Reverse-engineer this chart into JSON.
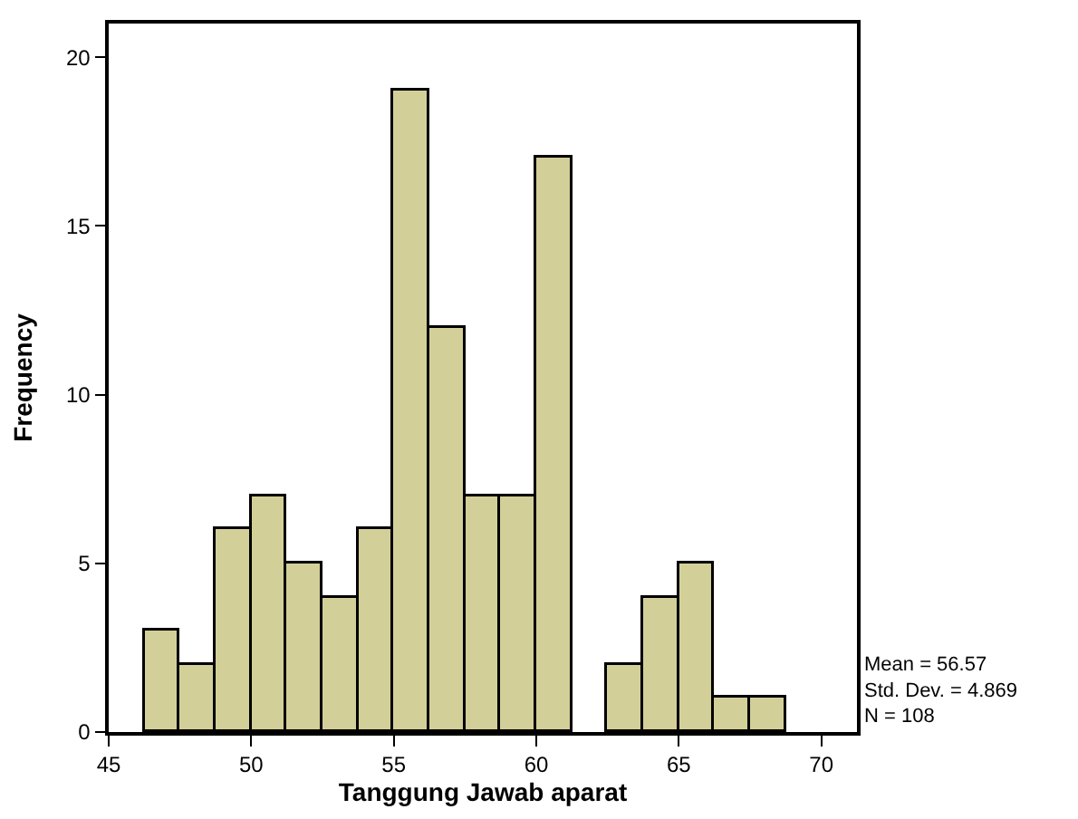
{
  "chart_data": {
    "type": "histogram",
    "xlabel": "Tanggung Jawab aparat",
    "ylabel": "Frequency",
    "bins": [
      46.25,
      47.5,
      48.75,
      50,
      51.25,
      52.5,
      53.75,
      55,
      56.25,
      57.5,
      58.75,
      60,
      61.25,
      62.5,
      63.75,
      65,
      66.25,
      67.5,
      68.75
    ],
    "values": [
      3,
      2,
      6,
      7,
      5,
      4,
      6,
      19,
      12,
      7,
      7,
      17,
      0,
      2,
      4,
      5,
      1,
      1
    ],
    "color": "#d3cf98",
    "xlim": [
      45,
      71.25
    ],
    "xticks": [
      45,
      50,
      55,
      60,
      65,
      70
    ],
    "ylim": [
      0,
      21
    ],
    "yticks": [
      0,
      5,
      10,
      15,
      20
    ],
    "annotations": [
      "Mean = 56.57",
      "Std. Dev. = 4.869",
      "N = 108"
    ]
  }
}
